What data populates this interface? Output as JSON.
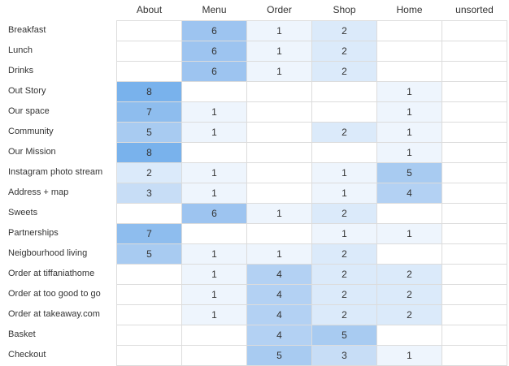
{
  "columns": [
    "About",
    "Menu",
    "Order",
    "Shop",
    "Home",
    "unsorted"
  ],
  "rows": [
    {
      "label": "Breakfast",
      "values": [
        null,
        6,
        1,
        2,
        null,
        null
      ]
    },
    {
      "label": "Lunch",
      "values": [
        null,
        6,
        1,
        2,
        null,
        null
      ]
    },
    {
      "label": "Drinks",
      "values": [
        null,
        6,
        1,
        2,
        null,
        null
      ]
    },
    {
      "label": "Out Story",
      "values": [
        8,
        null,
        null,
        null,
        1,
        null
      ]
    },
    {
      "label": "Our space",
      "values": [
        7,
        1,
        null,
        null,
        1,
        null
      ]
    },
    {
      "label": "Community",
      "values": [
        5,
        1,
        null,
        2,
        1,
        null
      ]
    },
    {
      "label": "Our Mission",
      "values": [
        8,
        null,
        null,
        null,
        1,
        null
      ]
    },
    {
      "label": "Instagram photo stream",
      "values": [
        2,
        1,
        null,
        1,
        5,
        null
      ]
    },
    {
      "label": "Address + map",
      "values": [
        3,
        1,
        null,
        1,
        4,
        null
      ]
    },
    {
      "label": "Sweets",
      "values": [
        null,
        6,
        1,
        2,
        null,
        null
      ]
    },
    {
      "label": "Partnerships",
      "values": [
        7,
        null,
        null,
        1,
        1,
        null
      ]
    },
    {
      "label": "Neigbourhood living",
      "values": [
        5,
        1,
        1,
        2,
        null,
        null
      ]
    },
    {
      "label": "Order at tiffaniathome",
      "values": [
        null,
        1,
        4,
        2,
        2,
        null
      ]
    },
    {
      "label": "Order at too good to go",
      "values": [
        null,
        1,
        4,
        2,
        2,
        null
      ]
    },
    {
      "label": "Order at takeaway.com",
      "values": [
        null,
        1,
        4,
        2,
        2,
        null
      ]
    },
    {
      "label": "Basket",
      "values": [
        null,
        null,
        4,
        5,
        null,
        null
      ]
    },
    {
      "label": "Checkout",
      "values": [
        null,
        null,
        5,
        3,
        1,
        null
      ]
    }
  ],
  "colors": {
    "level_1": "#eef5fd",
    "level_2": "#dbeafa",
    "level_3": "#c7ddf6",
    "level_4": "#b3d1f3",
    "level_5": "#a8cbf1",
    "level_6": "#9dc4f0",
    "level_7": "#8ebdee",
    "level_8": "#79b2ec",
    "empty": "#ffffff",
    "grid": "#dcdcdc"
  }
}
